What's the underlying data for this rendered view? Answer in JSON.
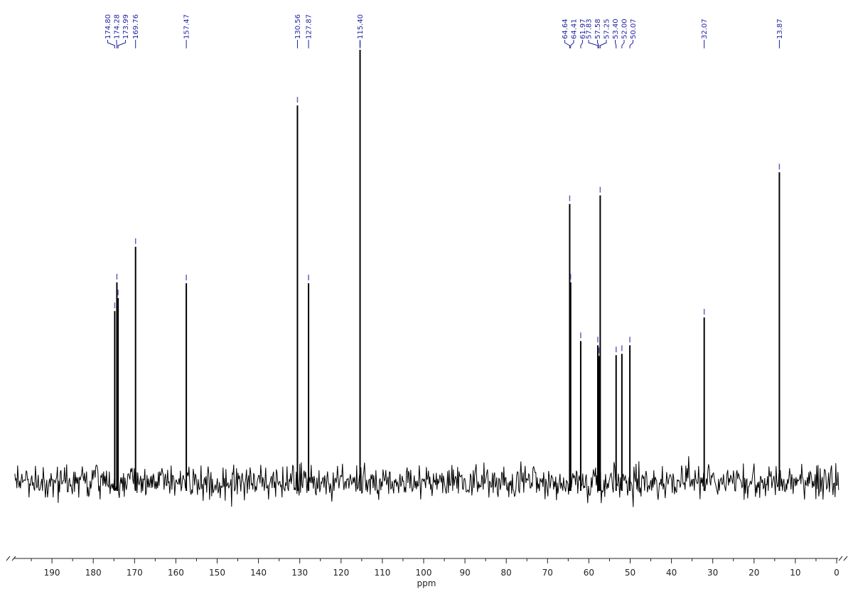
{
  "chart_data": {
    "type": "line",
    "title": "",
    "xlabel": "ppm",
    "ylabel": "",
    "xlim": [
      199,
      -0.5
    ],
    "x_reversed": true,
    "x_ticks": [
      190,
      180,
      170,
      160,
      150,
      140,
      130,
      120,
      110,
      100,
      90,
      80,
      70,
      60,
      50,
      40,
      30,
      20,
      10,
      0
    ],
    "x_minor_step": 5,
    "grid": false,
    "peak_label_color": "#1f1fa0",
    "trace_color": "#000000",
    "peaks": [
      {
        "ppm": 174.8,
        "label": "174.80",
        "intensity": 39
      },
      {
        "ppm": 174.28,
        "label": "174.28",
        "intensity": 45.7
      },
      {
        "ppm": 173.99,
        "label": "173.99",
        "intensity": 42
      },
      {
        "ppm": 169.76,
        "label": "169.76",
        "intensity": 54
      },
      {
        "ppm": 157.47,
        "label": "157.47",
        "intensity": 45.5
      },
      {
        "ppm": 130.56,
        "label": "130.56",
        "intensity": 87
      },
      {
        "ppm": 127.87,
        "label": "127.87",
        "intensity": 45.5
      },
      {
        "ppm": 115.4,
        "label": "115.40",
        "intensity": 100
      },
      {
        "ppm": 64.64,
        "label": "64.64",
        "intensity": 64
      },
      {
        "ppm": 64.41,
        "label": "64.41",
        "intensity": 45.7
      },
      {
        "ppm": 61.97,
        "label": "61.97",
        "intensity": 32
      },
      {
        "ppm": 57.83,
        "label": "57.83",
        "intensity": 31
      },
      {
        "ppm": 57.58,
        "label": "57.58",
        "intensity": 28.5
      },
      {
        "ppm": 57.25,
        "label": "57.25",
        "intensity": 66
      },
      {
        "ppm": 53.4,
        "label": "53.40",
        "intensity": 28.7
      },
      {
        "ppm": 52.0,
        "label": "52.00",
        "intensity": 29
      },
      {
        "ppm": 50.07,
        "label": "50.07",
        "intensity": 31
      },
      {
        "ppm": 32.07,
        "label": "32.07",
        "intensity": 37.5
      },
      {
        "ppm": 13.87,
        "label": "13.87",
        "intensity": 71.4
      }
    ]
  }
}
